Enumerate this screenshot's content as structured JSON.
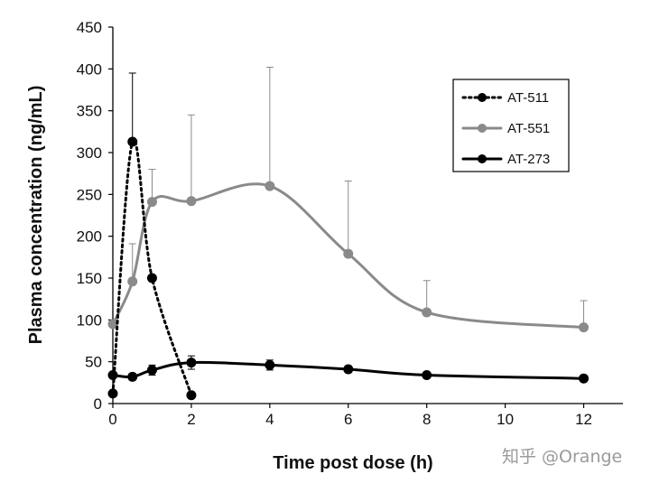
{
  "chart_data": {
    "type": "line",
    "xlabel": "Time post dose (h)",
    "ylabel": "Plasma concentration (ng/mL)",
    "xlim": [
      0,
      13
    ],
    "ylim": [
      0,
      450
    ],
    "x_ticks": [
      0,
      2,
      4,
      6,
      8,
      10,
      12
    ],
    "y_ticks": [
      0,
      50,
      100,
      150,
      200,
      250,
      300,
      350,
      400,
      450
    ],
    "legend_position": "top-right",
    "series": [
      {
        "name": "AT-511",
        "style": "dotted",
        "color": "#000000",
        "x": [
          0,
          0.5,
          1,
          2
        ],
        "y": [
          12,
          313,
          150,
          10
        ],
        "error_upper": [
          null,
          395,
          null,
          null
        ]
      },
      {
        "name": "AT-551",
        "style": "solid",
        "color": "#8a8a8a",
        "x": [
          0,
          0.5,
          1,
          2,
          4,
          6,
          8,
          12
        ],
        "y": [
          95,
          146,
          241,
          242,
          260,
          179,
          109,
          91
        ],
        "error_upper": [
          null,
          191,
          280,
          345,
          402,
          266,
          147,
          123
        ]
      },
      {
        "name": "AT-273",
        "style": "solid",
        "color": "#000000",
        "x": [
          0,
          0.5,
          1,
          2,
          4,
          6,
          8,
          12
        ],
        "y": [
          34,
          32,
          40,
          49,
          46,
          41,
          34,
          30
        ],
        "error_upper": [
          null,
          36,
          46,
          57,
          52,
          45,
          null,
          null
        ],
        "error_lower": [
          null,
          28,
          34,
          41,
          40,
          37,
          null,
          null
        ]
      }
    ]
  },
  "watermark": "知乎 @Orange"
}
